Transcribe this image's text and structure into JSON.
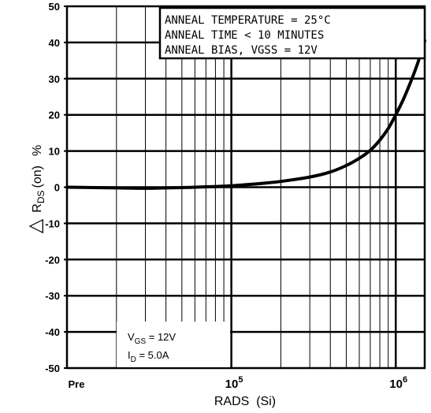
{
  "chart_data": {
    "type": "line",
    "title": "",
    "xlabel": "RADS  (Si)",
    "ylabel_symbol": "△",
    "ylabel_main": "R",
    "ylabel_sub": "DS",
    "ylabel_suffix": "(on)",
    "ylabel_unit": "%",
    "x_scale": "log",
    "xlim": [
      10000,
      1500000
    ],
    "ylim": [
      -50,
      50
    ],
    "grid": true,
    "y_ticks": [
      "50",
      "40",
      "30",
      "20",
      "10",
      "0",
      "-10",
      "-20",
      "-30",
      "-40",
      "-50"
    ],
    "x_tick_labels": [
      {
        "label": "Pre",
        "x": 10000
      },
      {
        "base": "10",
        "exp": "5",
        "x": 100000
      },
      {
        "base": "10",
        "exp": "6",
        "x": 1000000
      }
    ],
    "annotation_lines": [
      "ANNEAL  TEMPERATURE  =  25°C",
      "ANNEAL  TIME  <  10  MINUTES",
      "ANNEAL  BIAS,   VGSS  =  12V"
    ],
    "conditions": {
      "vgs_main": "V",
      "vgs_sub": "GS",
      "vgs_value": " = 12V",
      "id_main": "I",
      "id_sub": "D",
      "id_value": " = 5.0A"
    },
    "series": [
      {
        "x": [
          10000,
          20000,
          30000,
          50000,
          70000,
          100000,
          150000,
          200000,
          300000,
          400000,
          500000,
          600000,
          700000,
          800000,
          900000,
          1000000,
          1100000,
          1200000,
          1300000,
          1400000,
          1500000
        ],
        "y": [
          0,
          -0.2,
          -0.3,
          -0.1,
          0.1,
          0.4,
          1.0,
          1.6,
          2.8,
          4.2,
          6.0,
          8.0,
          10.2,
          13.0,
          16.2,
          20.0,
          23.8,
          27.8,
          31.8,
          36.0,
          40.5
        ]
      }
    ]
  }
}
